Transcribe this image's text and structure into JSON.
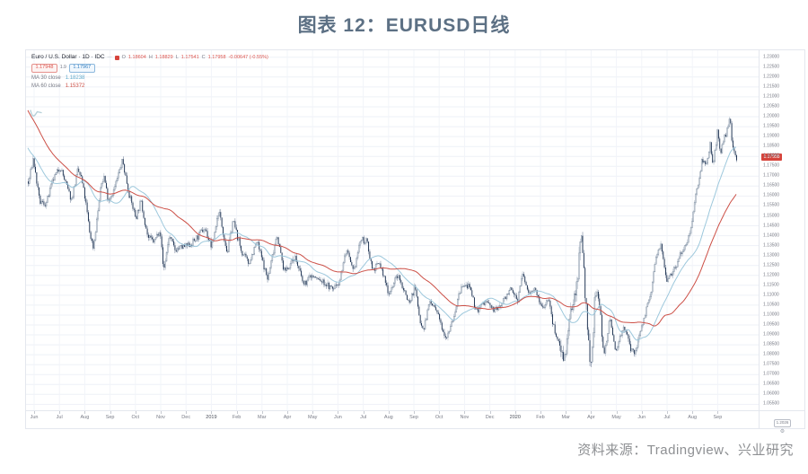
{
  "title": "图表 12：EURUSD日线",
  "source_note": "资料来源：Tradingview、兴业研究",
  "legend": {
    "symbol_title": "Euro / U.S. Dollar · 1D · IDC",
    "ohlc": {
      "o_label": "O",
      "o_value": "1.18604",
      "h_label": "H",
      "h_value": "1.18829",
      "l_label": "L",
      "l_value": "1.17541",
      "c_label": "C",
      "c_value": "1.17958",
      "change": "-0.00647 (-0.55%)"
    },
    "sell_price": "1.17948",
    "spread": "1.9",
    "buy_price": "1.17967",
    "ma30_label": "MA 30 close",
    "ma30_value": "1.18238",
    "ma60_label": "MA 60 close",
    "ma60_value": "1.15372"
  },
  "price_axis": {
    "last_price": "1.17958",
    "corner_box": "1.2026",
    "gear_icon": "⚙"
  },
  "chart_data": {
    "type": "candlestick",
    "symbol": "EURUSD",
    "interval": "1D",
    "x_range": [
      "Jun 2018",
      "Sep 2020"
    ],
    "ylim": [
      1.052,
      1.2335
    ],
    "grid": true,
    "legend_position": "top-left",
    "x_ticks": [
      "Jun",
      "Jul",
      "Aug",
      "Sep",
      "Oct",
      "Nov",
      "Dec",
      "2019",
      "Feb",
      "Mar",
      "Apr",
      "May",
      "Jun",
      "Jul",
      "Aug",
      "Sep",
      "Oct",
      "Nov",
      "Dec",
      "2020",
      "Feb",
      "Mar",
      "Apr",
      "May",
      "Jun",
      "Jul",
      "Aug",
      "Sep"
    ],
    "y_ticks": [
      "1.23000",
      "1.22500",
      "1.22000",
      "1.21500",
      "1.21000",
      "1.20500",
      "1.20000",
      "1.19500",
      "1.19000",
      "1.18500",
      "1.18000",
      "1.17500",
      "1.17000",
      "1.16500",
      "1.16000",
      "1.15500",
      "1.15000",
      "1.14500",
      "1.14000",
      "1.13500",
      "1.13000",
      "1.12500",
      "1.12000",
      "1.11500",
      "1.11000",
      "1.10500",
      "1.10000",
      "1.09500",
      "1.09000",
      "1.08500",
      "1.08000",
      "1.07500",
      "1.07000",
      "1.06500",
      "1.06000",
      "1.05500"
    ],
    "last_price": 1.17958,
    "num_candles": 590,
    "pre_bars": 60,
    "volatility_zones": [
      [
        0.75,
        0.812,
        2.3
      ]
    ],
    "series": [
      {
        "name": "MA 30 close",
        "period": 30,
        "color": "#9dc8dc"
      },
      {
        "name": "MA 60 close",
        "period": 60,
        "color": "#cc4f46"
      }
    ],
    "colors": {
      "candle_up_fill": "#ffffff",
      "candle_up_stroke": "#64788f",
      "candle_down": "#1c3150",
      "grid": "#eef1f7",
      "grid_vertical": "#f2f4f9",
      "last_price_badge": "#d6443c"
    },
    "price_path": [
      [
        0.0,
        1.166
      ],
      [
        0.007,
        1.179
      ],
      [
        0.016,
        1.157
      ],
      [
        0.025,
        1.156
      ],
      [
        0.035,
        1.168
      ],
      [
        0.045,
        1.175
      ],
      [
        0.055,
        1.164
      ],
      [
        0.061,
        1.158
      ],
      [
        0.07,
        1.173
      ],
      [
        0.075,
        1.169
      ],
      [
        0.081,
        1.157
      ],
      [
        0.087,
        1.141
      ],
      [
        0.092,
        1.134
      ],
      [
        0.103,
        1.166
      ],
      [
        0.107,
        1.17
      ],
      [
        0.113,
        1.158
      ],
      [
        0.121,
        1.163
      ],
      [
        0.133,
        1.178
      ],
      [
        0.143,
        1.16
      ],
      [
        0.152,
        1.149
      ],
      [
        0.159,
        1.1575
      ],
      [
        0.169,
        1.139
      ],
      [
        0.178,
        1.137
      ],
      [
        0.186,
        1.144
      ],
      [
        0.191,
        1.122
      ],
      [
        0.199,
        1.14
      ],
      [
        0.207,
        1.133
      ],
      [
        0.216,
        1.134
      ],
      [
        0.226,
        1.135
      ],
      [
        0.236,
        1.138
      ],
      [
        0.249,
        1.144
      ],
      [
        0.259,
        1.134
      ],
      [
        0.269,
        1.153
      ],
      [
        0.281,
        1.131
      ],
      [
        0.289,
        1.148
      ],
      [
        0.301,
        1.132
      ],
      [
        0.311,
        1.126
      ],
      [
        0.323,
        1.137
      ],
      [
        0.338,
        1.118
      ],
      [
        0.351,
        1.141
      ],
      [
        0.361,
        1.122
      ],
      [
        0.371,
        1.126
      ],
      [
        0.376,
        1.13
      ],
      [
        0.389,
        1.115
      ],
      [
        0.399,
        1.12
      ],
      [
        0.409,
        1.118
      ],
      [
        0.419,
        1.116
      ],
      [
        0.429,
        1.113
      ],
      [
        0.439,
        1.117
      ],
      [
        0.449,
        1.133
      ],
      [
        0.459,
        1.121
      ],
      [
        0.469,
        1.138
      ],
      [
        0.478,
        1.137
      ],
      [
        0.486,
        1.123
      ],
      [
        0.496,
        1.126
      ],
      [
        0.509,
        1.111
      ],
      [
        0.521,
        1.12
      ],
      [
        0.529,
        1.114
      ],
      [
        0.538,
        1.106
      ],
      [
        0.546,
        1.1145
      ],
      [
        0.552,
        1.099
      ],
      [
        0.558,
        1.093
      ],
      [
        0.567,
        1.107
      ],
      [
        0.576,
        1.102
      ],
      [
        0.584,
        1.094
      ],
      [
        0.59,
        1.089
      ],
      [
        0.601,
        1.1
      ],
      [
        0.611,
        1.114
      ],
      [
        0.621,
        1.115
      ],
      [
        0.633,
        1.102
      ],
      [
        0.646,
        1.107
      ],
      [
        0.659,
        1.102
      ],
      [
        0.669,
        1.106
      ],
      [
        0.679,
        1.113
      ],
      [
        0.691,
        1.108
      ],
      [
        0.698,
        1.121
      ],
      [
        0.706,
        1.111
      ],
      [
        0.713,
        1.114
      ],
      [
        0.726,
        1.103
      ],
      [
        0.734,
        1.109
      ],
      [
        0.741,
        1.095
      ],
      [
        0.751,
        1.084
      ],
      [
        0.758,
        1.079
      ],
      [
        0.767,
        1.103
      ],
      [
        0.775,
        1.117
      ],
      [
        0.78,
        1.144
      ],
      [
        0.785,
        1.118
      ],
      [
        0.794,
        1.069
      ],
      [
        0.801,
        1.114
      ],
      [
        0.807,
        1.103
      ],
      [
        0.813,
        1.08
      ],
      [
        0.821,
        1.098
      ],
      [
        0.829,
        1.082
      ],
      [
        0.841,
        1.095
      ],
      [
        0.849,
        1.084
      ],
      [
        0.856,
        1.08
      ],
      [
        0.866,
        1.095
      ],
      [
        0.879,
        1.11
      ],
      [
        0.886,
        1.129
      ],
      [
        0.893,
        1.137
      ],
      [
        0.901,
        1.118
      ],
      [
        0.913,
        1.124
      ],
      [
        0.921,
        1.131
      ],
      [
        0.933,
        1.14
      ],
      [
        0.941,
        1.157
      ],
      [
        0.951,
        1.178
      ],
      [
        0.957,
        1.176
      ],
      [
        0.963,
        1.187
      ],
      [
        0.967,
        1.174
      ],
      [
        0.973,
        1.193
      ],
      [
        0.977,
        1.18
      ],
      [
        0.983,
        1.19
      ],
      [
        0.988,
        1.194
      ],
      [
        0.991,
        1.2
      ],
      [
        0.994,
        1.185
      ],
      [
        1.0,
        1.1796
      ]
    ]
  }
}
